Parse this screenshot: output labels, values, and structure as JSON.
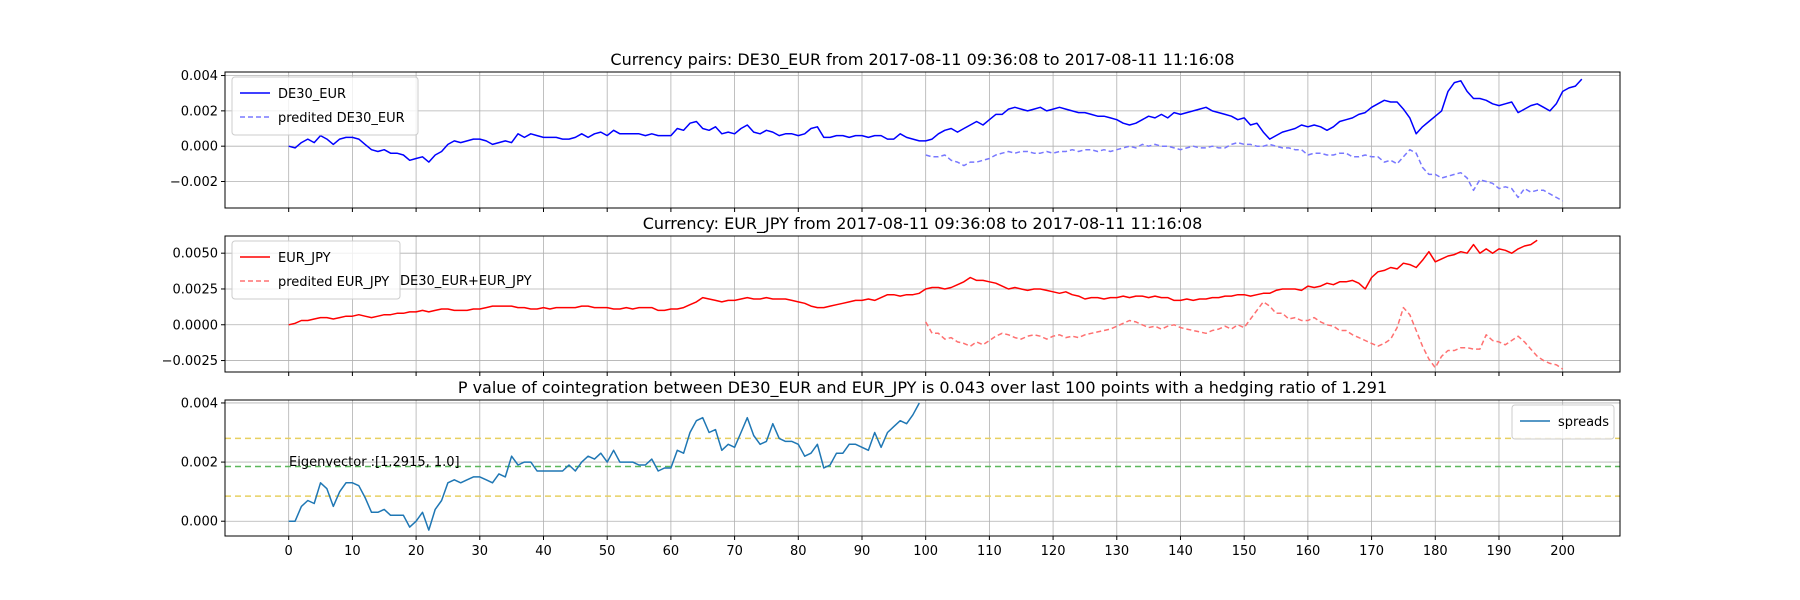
{
  "chart_data": [
    {
      "type": "line",
      "title": "Currency pairs: DE30_EUR from 2017-08-11 09:36:08 to 2017-08-11 11:16:08",
      "ylim": [
        -0.0035,
        0.0042
      ],
      "yticks": [
        -0.002,
        0.0,
        0.002,
        0.004
      ],
      "ytick_labels": [
        "−0.002",
        "0.000",
        "0.002",
        "0.004"
      ],
      "grid": true,
      "legend_position": "upper-left",
      "series": [
        {
          "name": "DE30_EUR",
          "color": "#0000ff",
          "style": "solid",
          "x_start": 0,
          "values": [
            0.0,
            -0.0001,
            0.0002,
            0.0004,
            0.0002,
            0.0006,
            0.0004,
            0.0001,
            0.0004,
            0.0005,
            0.0005,
            0.0004,
            0.0001,
            -0.0002,
            -0.0003,
            -0.0002,
            -0.0004,
            -0.0004,
            -0.0005,
            -0.0008,
            -0.0007,
            -0.0006,
            -0.0009,
            -0.0005,
            -0.0003,
            0.0001,
            0.0003,
            0.0002,
            0.0003,
            0.0004,
            0.0004,
            0.0003,
            0.0001,
            0.0002,
            0.0003,
            0.0002,
            0.0007,
            0.0005,
            0.0007,
            0.0006,
            0.0005,
            0.0005,
            0.0005,
            0.0004,
            0.0004,
            0.0005,
            0.0007,
            0.0005,
            0.0007,
            0.0008,
            0.0006,
            0.0009,
            0.0007,
            0.0007,
            0.0007,
            0.0007,
            0.0006,
            0.0007,
            0.0006,
            0.0006,
            0.0006,
            0.001,
            0.0009,
            0.0013,
            0.0014,
            0.001,
            0.0009,
            0.0011,
            0.0007,
            0.0008,
            0.0007,
            0.001,
            0.0012,
            0.0008,
            0.0007,
            0.0009,
            0.0008,
            0.0006,
            0.0007,
            0.0007,
            0.0006,
            0.0007,
            0.001,
            0.0011,
            0.0005,
            0.0005,
            0.0006,
            0.0006,
            0.0005,
            0.0006,
            0.0006,
            0.0005,
            0.0006,
            0.0006,
            0.0004,
            0.0004,
            0.0007,
            0.0005,
            0.0004,
            0.0003,
            0.0003,
            0.0004,
            0.0007,
            0.0009,
            0.001,
            0.0008,
            0.001,
            0.0012,
            0.0014,
            0.0012,
            0.0015,
            0.0018,
            0.0018,
            0.0021,
            0.0022,
            0.0021,
            0.002,
            0.0021,
            0.0022,
            0.002,
            0.0021,
            0.0022,
            0.0021,
            0.002,
            0.0019,
            0.0019,
            0.0018,
            0.0017,
            0.0017,
            0.0016,
            0.0015,
            0.0013,
            0.0012,
            0.0013,
            0.0015,
            0.0017,
            0.0016,
            0.0018,
            0.0016,
            0.0019,
            0.0018,
            0.0019,
            0.002,
            0.0021,
            0.0022,
            0.002,
            0.0019,
            0.0018,
            0.0017,
            0.0015,
            0.0016,
            0.0012,
            0.0013,
            0.0008,
            0.0004,
            0.0006,
            0.0008,
            0.0009,
            0.001,
            0.0012,
            0.0011,
            0.0012,
            0.0011,
            0.0009,
            0.0011,
            0.0014,
            0.0015,
            0.0016,
            0.0018,
            0.0019,
            0.0022,
            0.0024,
            0.0026,
            0.0025,
            0.0025,
            0.0021,
            0.0016,
            0.0007,
            0.0011,
            0.0014,
            0.0017,
            0.002,
            0.0031,
            0.0036,
            0.0037,
            0.0031,
            0.0027,
            0.0027,
            0.0026,
            0.0024,
            0.0023,
            0.0024,
            0.0025,
            0.0019,
            0.0021,
            0.0023,
            0.0024,
            0.0022,
            0.002,
            0.0024,
            0.0031,
            0.0033,
            0.0034,
            0.0038
          ]
        },
        {
          "name": "predited DE30_EUR",
          "color": "#7878ff",
          "style": "dashed",
          "x_start": 100,
          "values": [
            -0.0005,
            -0.0006,
            -0.0006,
            -0.0005,
            -0.0008,
            -0.0009,
            -0.0011,
            -0.0009,
            -0.0009,
            -0.0008,
            -0.0007,
            -0.0005,
            -0.0004,
            -0.0003,
            -0.0004,
            -0.0003,
            -0.0003,
            -0.0004,
            -0.0004,
            -0.0003,
            -0.0004,
            -0.0003,
            -0.0003,
            -0.0002,
            -0.0003,
            -0.0002,
            -0.0002,
            -0.0003,
            -0.0002,
            -0.0003,
            -0.0002,
            -0.0001,
            0.0,
            -0.0001,
            0.0001,
            0.0,
            0.0001,
            0.0,
            0.0,
            -0.0001,
            -0.0002,
            -0.0001,
            0.0,
            -0.0001,
            -0.0001,
            0.0,
            -0.0001,
            -0.0001,
            0.0001,
            0.0002,
            0.0001,
            0.0001,
            0.0,
            0.0,
            0.0001,
            0.0,
            -0.0001,
            -0.0001,
            -0.0002,
            -0.0002,
            -0.0005,
            -0.0004,
            -0.0004,
            -0.0005,
            -0.0005,
            -0.0004,
            -0.0004,
            -0.0006,
            -0.0006,
            -0.0005,
            -0.0006,
            -0.0006,
            -0.0009,
            -0.0008,
            -0.001,
            -0.0006,
            -0.0002,
            -0.0004,
            -0.0012,
            -0.0016,
            -0.0016,
            -0.0018,
            -0.0017,
            -0.0016,
            -0.0015,
            -0.0018,
            -0.0025,
            -0.0019,
            -0.002,
            -0.0021,
            -0.0024,
            -0.0023,
            -0.0024,
            -0.0029,
            -0.0024,
            -0.0026,
            -0.0025,
            -0.0025,
            -0.0027,
            -0.0029,
            -0.0031
          ]
        }
      ]
    },
    {
      "type": "line",
      "title": "Currency: EUR_JPY from 2017-08-11 09:36:08 to 2017-08-11 11:16:08",
      "ylim": [
        -0.0033,
        0.0062
      ],
      "yticks": [
        -0.0025,
        0.0,
        0.0025,
        0.005
      ],
      "ytick_labels": [
        "−0.0025",
        "0.0000",
        "0.0025",
        "0.0050"
      ],
      "grid": true,
      "legend_position": "upper-left",
      "annotation": "DE30_EUR+EUR_JPY",
      "series": [
        {
          "name": "EUR_JPY",
          "color": "#ff0000",
          "style": "solid",
          "x_start": 0,
          "values": [
            0.0,
            0.0001,
            0.0003,
            0.0003,
            0.0004,
            0.0005,
            0.0005,
            0.0004,
            0.0005,
            0.0006,
            0.0006,
            0.0007,
            0.0006,
            0.0005,
            0.0006,
            0.0007,
            0.0007,
            0.0008,
            0.0008,
            0.0009,
            0.0009,
            0.001,
            0.0009,
            0.001,
            0.0011,
            0.0011,
            0.001,
            0.001,
            0.001,
            0.0011,
            0.0011,
            0.0012,
            0.0013,
            0.0013,
            0.0013,
            0.0013,
            0.0012,
            0.0012,
            0.0011,
            0.0011,
            0.0012,
            0.0011,
            0.0012,
            0.0012,
            0.0012,
            0.0012,
            0.0013,
            0.0013,
            0.0012,
            0.0012,
            0.0012,
            0.0011,
            0.0011,
            0.0012,
            0.0011,
            0.0012,
            0.0012,
            0.0012,
            0.001,
            0.001,
            0.0011,
            0.0011,
            0.0012,
            0.0014,
            0.0016,
            0.0019,
            0.0018,
            0.0017,
            0.0016,
            0.0017,
            0.0017,
            0.0018,
            0.0019,
            0.0018,
            0.0018,
            0.0019,
            0.0018,
            0.0018,
            0.0018,
            0.0017,
            0.0016,
            0.0015,
            0.0013,
            0.0012,
            0.0012,
            0.0013,
            0.0014,
            0.0015,
            0.0016,
            0.0017,
            0.0017,
            0.0018,
            0.0017,
            0.0019,
            0.0021,
            0.0021,
            0.002,
            0.0021,
            0.0021,
            0.0022,
            0.0025,
            0.0026,
            0.0026,
            0.0025,
            0.0026,
            0.0028,
            0.003,
            0.0033,
            0.0031,
            0.0031,
            0.003,
            0.0029,
            0.0027,
            0.0025,
            0.0026,
            0.0025,
            0.0024,
            0.0025,
            0.0025,
            0.0024,
            0.0023,
            0.0022,
            0.0023,
            0.0021,
            0.002,
            0.0018,
            0.0019,
            0.0019,
            0.0018,
            0.0019,
            0.0019,
            0.002,
            0.0019,
            0.002,
            0.002,
            0.0019,
            0.002,
            0.0019,
            0.0019,
            0.0017,
            0.0017,
            0.0018,
            0.0017,
            0.0018,
            0.0018,
            0.0019,
            0.0019,
            0.002,
            0.002,
            0.0021,
            0.0021,
            0.002,
            0.0021,
            0.0022,
            0.0022,
            0.0024,
            0.0025,
            0.0025,
            0.0025,
            0.0024,
            0.0027,
            0.0026,
            0.0027,
            0.0029,
            0.0028,
            0.003,
            0.003,
            0.0031,
            0.0029,
            0.0025,
            0.0033,
            0.0037,
            0.0038,
            0.004,
            0.0039,
            0.0043,
            0.0042,
            0.004,
            0.0045,
            0.0051,
            0.0044,
            0.0046,
            0.0048,
            0.0049,
            0.0051,
            0.005,
            0.0056,
            0.005,
            0.0053,
            0.005,
            0.0053,
            0.0052,
            0.005,
            0.0053,
            0.0055,
            0.0056,
            0.0059
          ]
        },
        {
          "name": "predited EUR_JPY",
          "color": "#ff7070",
          "style": "dashed",
          "x_start": 100,
          "values": [
            0.0002,
            -0.0006,
            -0.0006,
            -0.001,
            -0.0009,
            -0.0012,
            -0.0013,
            -0.0015,
            -0.0012,
            -0.0014,
            -0.0011,
            -0.0008,
            -0.0006,
            -0.0007,
            -0.0009,
            -0.001,
            -0.0008,
            -0.0007,
            -0.0008,
            -0.001,
            -0.0008,
            -0.0007,
            -0.0009,
            -0.0008,
            -0.0009,
            -0.0007,
            -0.0006,
            -0.0005,
            -0.0004,
            -0.0003,
            -0.0001,
            0.0001,
            0.0003,
            0.0002,
            0.0,
            -0.0002,
            -0.0001,
            -0.0003,
            -0.0001,
            0.0,
            -0.0002,
            -0.0003,
            -0.0004,
            -0.0005,
            -0.0006,
            -0.0004,
            -0.0003,
            -0.0001,
            -0.0003,
            0.0,
            -0.0002,
            0.0004,
            0.001,
            0.0016,
            0.0013,
            0.0008,
            0.0008,
            0.0004,
            0.0005,
            0.0003,
            0.0003,
            0.0005,
            0.0002,
            0.0,
            -0.0001,
            -0.0004,
            -0.0004,
            -0.0007,
            -0.0009,
            -0.0011,
            -0.0013,
            -0.0015,
            -0.0013,
            -0.001,
            -0.0002,
            0.0012,
            0.0007,
            -0.0004,
            -0.0015,
            -0.0024,
            -0.003,
            -0.0022,
            -0.0018,
            -0.0018,
            -0.0016,
            -0.0016,
            -0.0017,
            -0.0017,
            -0.0007,
            -0.0011,
            -0.0012,
            -0.0014,
            -0.0011,
            -0.0008,
            -0.0012,
            -0.0017,
            -0.0022,
            -0.0025,
            -0.0027,
            -0.0028,
            -0.0031
          ]
        }
      ]
    },
    {
      "type": "line",
      "title": "P value of cointegration between DE30_EUR and EUR_JPY is 0.043 over last 100 points with a hedging ratio of 1.291",
      "ylim": [
        -0.0005,
        0.0041
      ],
      "yticks": [
        0.0,
        0.002,
        0.004
      ],
      "ytick_labels": [
        "0.000",
        "0.002",
        "0.004"
      ],
      "xlim": [
        -10,
        209
      ],
      "xticks": [
        0,
        10,
        20,
        30,
        40,
        50,
        60,
        70,
        80,
        90,
        100,
        110,
        120,
        130,
        140,
        150,
        160,
        170,
        180,
        190,
        200
      ],
      "grid": true,
      "legend_position": "upper-right",
      "annotation": "Eigenvector :[1.2915, 1.0]",
      "hlines": [
        {
          "y": 0.0028,
          "color": "#e8d060",
          "style": "dashed"
        },
        {
          "y": 0.00185,
          "color": "#5cb85c",
          "style": "dashed"
        },
        {
          "y": 0.00085,
          "color": "#e8d060",
          "style": "dashed"
        }
      ],
      "series": [
        {
          "name": "spreads",
          "color": "#1f77b4",
          "style": "solid",
          "x_start": 0,
          "values": [
            0.0,
            0.0,
            0.0005,
            0.0007,
            0.0006,
            0.0013,
            0.0011,
            0.0005,
            0.001,
            0.0013,
            0.0013,
            0.0012,
            0.0008,
            0.0003,
            0.0003,
            0.0004,
            0.0002,
            0.0002,
            0.0002,
            -0.0002,
            0.0,
            0.0003,
            -0.0003,
            0.0004,
            0.0007,
            0.0013,
            0.0014,
            0.0013,
            0.0014,
            0.0015,
            0.0015,
            0.0014,
            0.0013,
            0.0016,
            0.0015,
            0.0022,
            0.0019,
            0.002,
            0.002,
            0.0017,
            0.0017,
            0.0017,
            0.0017,
            0.0017,
            0.0019,
            0.0017,
            0.002,
            0.0022,
            0.0021,
            0.0023,
            0.002,
            0.0024,
            0.002,
            0.002,
            0.002,
            0.0019,
            0.0019,
            0.0021,
            0.0017,
            0.0018,
            0.0018,
            0.0024,
            0.0023,
            0.003,
            0.0034,
            0.0035,
            0.003,
            0.0031,
            0.0024,
            0.0026,
            0.0025,
            0.003,
            0.0035,
            0.0029,
            0.0026,
            0.0027,
            0.0033,
            0.0028,
            0.0027,
            0.0027,
            0.0026,
            0.0022,
            0.0023,
            0.0026,
            0.0018,
            0.0019,
            0.0023,
            0.0023,
            0.0026,
            0.0026,
            0.0025,
            0.0024,
            0.003,
            0.0025,
            0.003,
            0.0032,
            0.0034,
            0.0033,
            0.0036,
            0.004
          ]
        }
      ]
    }
  ]
}
